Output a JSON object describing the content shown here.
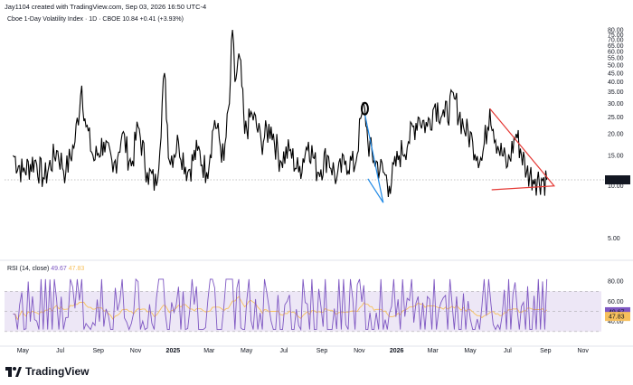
{
  "header": {
    "credit": "Jay1104 created with TradingView.com, Sep 03, 2026 16:50 UTC-4"
  },
  "legend": {
    "text": "Cboe 1-Day Volatility Index · 1D · CBOE 10.84 +0.41 (+3.93%)"
  },
  "rsi_legend": {
    "label": "RSI (14, close)",
    "value1": "49.67",
    "value2": "47.83"
  },
  "footer": {
    "brand": "TradingView"
  },
  "colors": {
    "price": "#000000",
    "rsi": "#7e57c2",
    "rsi_ma": "#f7c05c",
    "band": "#ede7f6",
    "red_line": "#e53935",
    "blue_line": "#1e88e5",
    "last_price_bg": "#131722",
    "rsi_tag": "#7e57c2",
    "rsi_ma_tag": "#f7c05c"
  },
  "chart_data": [
    {
      "type": "line",
      "title": "Cboe 1-Day Volatility Index",
      "scale": "log",
      "y_ticks": [
        "80.00",
        "75.00",
        "70.00",
        "65.00",
        "60.00",
        "55.00",
        "50.00",
        "45.00",
        "40.00",
        "35.00",
        "30.00",
        "25.00",
        "20.00",
        "15.00",
        "10.00",
        "5.00"
      ],
      "last_price": "10.84",
      "x_ticks": [
        "May",
        "Jul",
        "Sep",
        "Nov",
        "2025",
        "Mar",
        "May",
        "Jul",
        "Sep",
        "Nov",
        "2026",
        "Mar",
        "May",
        "Jul",
        "Sep",
        "Nov"
      ],
      "bold_ticks": [
        "2025",
        "2026"
      ],
      "series": [
        {
          "values": [
            [
              "2024-04-15",
              15
            ],
            [
              "2024-05-01",
              12
            ],
            [
              "2024-05-20",
              14
            ],
            [
              "2024-06-05",
              11
            ],
            [
              "2024-06-25",
              16
            ],
            [
              "2024-07-10",
              12
            ],
            [
              "2024-07-25",
              18
            ],
            [
              "2024-08-05",
              38
            ],
            [
              "2024-08-12",
              22
            ],
            [
              "2024-08-25",
              14
            ],
            [
              "2024-09-10",
              18
            ],
            [
              "2024-09-25",
              12
            ],
            [
              "2024-10-10",
              20
            ],
            [
              "2024-10-25",
              13
            ],
            [
              "2024-11-05",
              22
            ],
            [
              "2024-11-20",
              12
            ],
            [
              "2024-12-05",
              10
            ],
            [
              "2024-12-18",
              45
            ],
            [
              "2024-12-26",
              14
            ],
            [
              "2025-01-10",
              18
            ],
            [
              "2025-01-25",
              12
            ],
            [
              "2025-02-10",
              16
            ],
            [
              "2025-02-25",
              12
            ],
            [
              "2025-03-10",
              24
            ],
            [
              "2025-03-25",
              14
            ],
            [
              "2025-04-03",
              30
            ],
            [
              "2025-04-08",
              80
            ],
            [
              "2025-04-12",
              40
            ],
            [
              "2025-04-20",
              55
            ],
            [
              "2025-04-28",
              20
            ],
            [
              "2025-05-10",
              26
            ],
            [
              "2025-05-25",
              18
            ],
            [
              "2025-06-10",
              22
            ],
            [
              "2025-06-25",
              14
            ],
            [
              "2025-07-10",
              16
            ],
            [
              "2025-07-25",
              12
            ],
            [
              "2025-08-10",
              18
            ],
            [
              "2025-08-25",
              12
            ],
            [
              "2025-09-10",
              15
            ],
            [
              "2025-09-25",
              11
            ],
            [
              "2025-10-10",
              14
            ],
            [
              "2025-10-25",
              13
            ],
            [
              "2025-11-05",
              26
            ],
            [
              "2025-11-10",
              28
            ],
            [
              "2025-11-15",
              18
            ],
            [
              "2025-11-25",
              14
            ],
            [
              "2025-12-10",
              12
            ],
            [
              "2025-12-20",
              10
            ],
            [
              "2026-01-05",
              15
            ],
            [
              "2026-01-20",
              18
            ],
            [
              "2026-02-05",
              25
            ],
            [
              "2026-02-20",
              22
            ],
            [
              "2026-03-05",
              30
            ],
            [
              "2026-03-20",
              25
            ],
            [
              "2026-04-05",
              32
            ],
            [
              "2026-04-20",
              22
            ],
            [
              "2026-05-05",
              18
            ],
            [
              "2026-05-20",
              14
            ],
            [
              "2026-06-02",
              28
            ],
            [
              "2026-06-15",
              17
            ],
            [
              "2026-07-01",
              13
            ],
            [
              "2026-07-15",
              20
            ],
            [
              "2026-08-01",
              12
            ],
            [
              "2026-08-15",
              11
            ],
            [
              "2026-09-03",
              10.84
            ]
          ]
        }
      ],
      "annotations": {
        "red_triangle": [
          [
            "2026-06-02",
            28
          ],
          [
            "2026-09-15",
            10
          ],
          [
            "2026-06-05",
            9.5
          ]
        ],
        "blue_lines": [
          [
            "2025-11-10",
            26
          ],
          [
            "2025-12-10",
            8
          ]
        ]
      }
    },
    {
      "type": "line",
      "title": "RSI (14, close)",
      "y_ticks": [
        "80.00",
        "60.00",
        "40.00"
      ],
      "band": [
        30,
        70
      ],
      "last_values": [
        "49.67",
        "47.83"
      ],
      "series": [
        {
          "name": "RSI"
        },
        {
          "name": "RSI MA"
        }
      ]
    }
  ]
}
